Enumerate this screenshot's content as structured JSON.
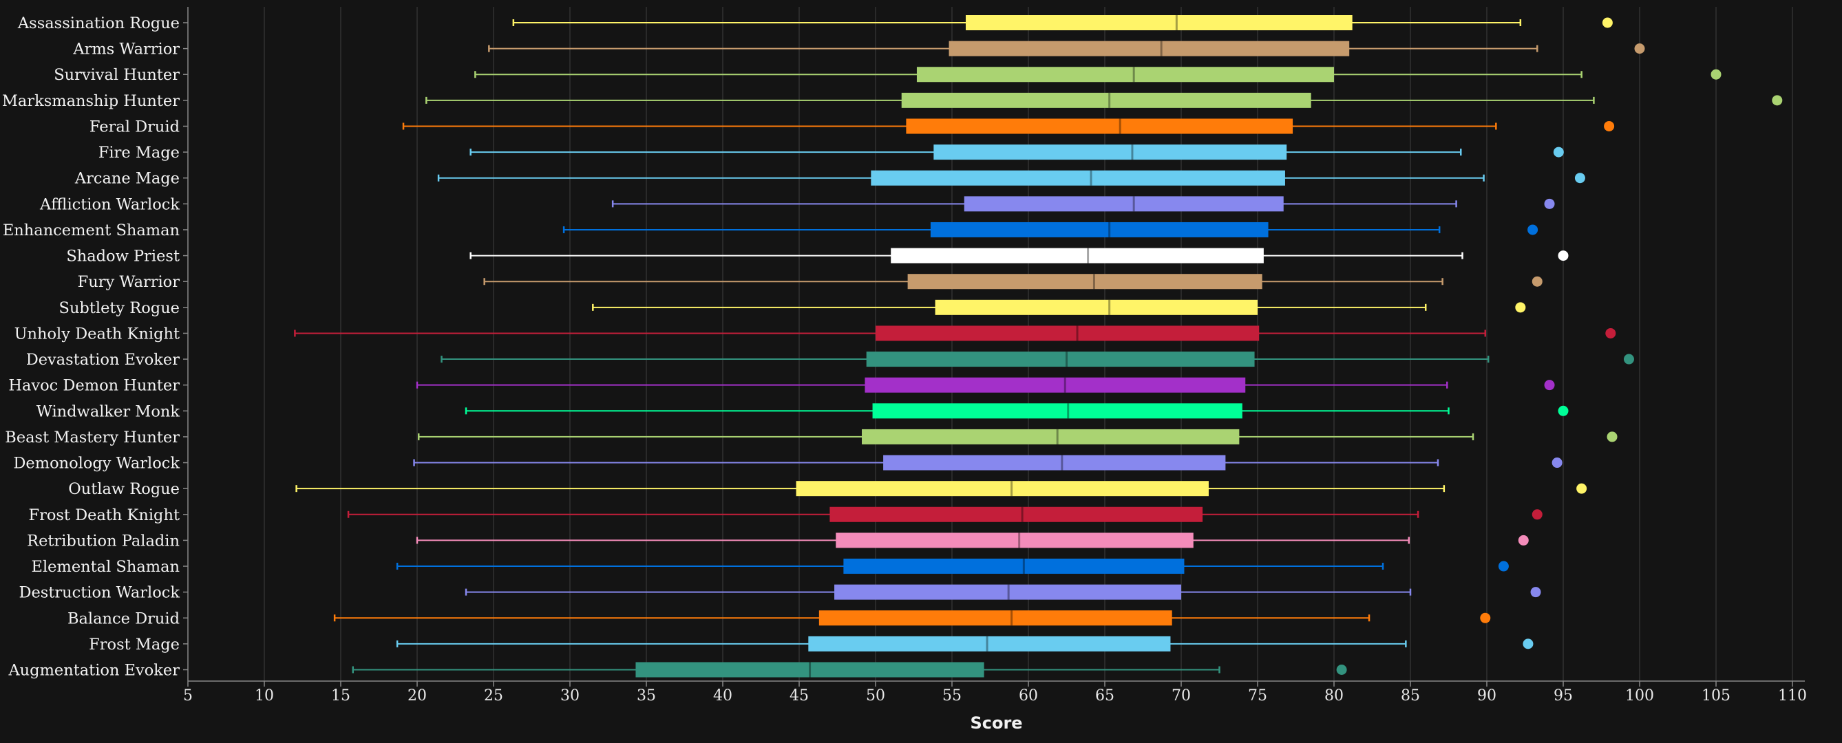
{
  "chart_data": {
    "type": "boxplot",
    "xlabel": "Score",
    "xlim": [
      5,
      112
    ],
    "xticks": [
      5,
      10,
      15,
      20,
      25,
      30,
      35,
      40,
      45,
      50,
      55,
      60,
      65,
      70,
      75,
      80,
      85,
      90,
      95,
      100,
      105,
      110
    ],
    "grid": true,
    "series": [
      {
        "name": "Assassination Rogue",
        "color": "#FFF468",
        "whisker_low": 26.3,
        "q1": 55.9,
        "median": 69.7,
        "q3": 81.2,
        "whisker_high": 92.2,
        "outlier": 97.9
      },
      {
        "name": "Arms Warrior",
        "color": "#C69B6D",
        "whisker_low": 24.7,
        "q1": 54.8,
        "median": 68.7,
        "q3": 81.0,
        "whisker_high": 93.3,
        "outlier": 100.0
      },
      {
        "name": "Survival Hunter",
        "color": "#AAD372",
        "whisker_low": 23.8,
        "q1": 52.7,
        "median": 66.9,
        "q3": 80.0,
        "whisker_high": 96.2,
        "outlier": 105.0
      },
      {
        "name": "Marksmanship Hunter",
        "color": "#AAD372",
        "whisker_low": 20.6,
        "q1": 51.7,
        "median": 65.3,
        "q3": 78.5,
        "whisker_high": 97.0,
        "outlier": 109.0
      },
      {
        "name": "Feral Druid",
        "color": "#FF7C0A",
        "whisker_low": 19.1,
        "q1": 52.0,
        "median": 66.0,
        "q3": 77.3,
        "whisker_high": 90.6,
        "outlier": 98.0
      },
      {
        "name": "Fire Mage",
        "color": "#69CCF0",
        "whisker_low": 23.5,
        "q1": 53.8,
        "median": 66.8,
        "q3": 76.9,
        "whisker_high": 88.3,
        "outlier": 94.7
      },
      {
        "name": "Arcane Mage",
        "color": "#69CCF0",
        "whisker_low": 21.4,
        "q1": 49.7,
        "median": 64.1,
        "q3": 76.8,
        "whisker_high": 89.8,
        "outlier": 96.1
      },
      {
        "name": "Affliction Warlock",
        "color": "#8788EE",
        "whisker_low": 32.8,
        "q1": 55.8,
        "median": 66.9,
        "q3": 76.7,
        "whisker_high": 88.0,
        "outlier": 94.1
      },
      {
        "name": "Enhancement Shaman",
        "color": "#0070DD",
        "whisker_low": 29.6,
        "q1": 53.6,
        "median": 65.3,
        "q3": 75.7,
        "whisker_high": 86.9,
        "outlier": 93.0
      },
      {
        "name": "Shadow Priest",
        "color": "#FFFFFF",
        "whisker_low": 23.5,
        "q1": 51.0,
        "median": 63.9,
        "q3": 75.4,
        "whisker_high": 88.4,
        "outlier": 95.0
      },
      {
        "name": "Fury Warrior",
        "color": "#C69B6D",
        "whisker_low": 24.4,
        "q1": 52.1,
        "median": 64.3,
        "q3": 75.3,
        "whisker_high": 87.1,
        "outlier": 93.3
      },
      {
        "name": "Subtlety Rogue",
        "color": "#FFF468",
        "whisker_low": 31.5,
        "q1": 53.9,
        "median": 65.3,
        "q3": 75.0,
        "whisker_high": 86.0,
        "outlier": 92.2
      },
      {
        "name": "Unholy Death Knight",
        "color": "#C41E3A",
        "whisker_low": 12.0,
        "q1": 50.0,
        "median": 63.2,
        "q3": 75.1,
        "whisker_high": 89.9,
        "outlier": 98.1
      },
      {
        "name": "Devastation Evoker",
        "color": "#33937F",
        "whisker_low": 21.6,
        "q1": 49.4,
        "median": 62.5,
        "q3": 74.8,
        "whisker_high": 90.1,
        "outlier": 99.3
      },
      {
        "name": "Havoc Demon Hunter",
        "color": "#A330C9",
        "whisker_low": 20.0,
        "q1": 49.3,
        "median": 62.4,
        "q3": 74.2,
        "whisker_high": 87.4,
        "outlier": 94.1
      },
      {
        "name": "Windwalker Monk",
        "color": "#00FF98",
        "whisker_low": 23.2,
        "q1": 49.8,
        "median": 62.6,
        "q3": 74.0,
        "whisker_high": 87.5,
        "outlier": 95.0
      },
      {
        "name": "Beast Mastery Hunter",
        "color": "#AAD372",
        "whisker_low": 20.1,
        "q1": 49.1,
        "median": 61.9,
        "q3": 73.8,
        "whisker_high": 89.1,
        "outlier": 98.2
      },
      {
        "name": "Demonology Warlock",
        "color": "#8788EE",
        "whisker_low": 19.8,
        "q1": 50.5,
        "median": 62.2,
        "q3": 72.9,
        "whisker_high": 86.8,
        "outlier": 94.6
      },
      {
        "name": "Outlaw Rogue",
        "color": "#FFF468",
        "whisker_low": 12.1,
        "q1": 44.8,
        "median": 58.9,
        "q3": 71.8,
        "whisker_high": 87.2,
        "outlier": 96.2
      },
      {
        "name": "Frost Death Knight",
        "color": "#C41E3A",
        "whisker_low": 15.5,
        "q1": 47.0,
        "median": 59.6,
        "q3": 71.4,
        "whisker_high": 85.5,
        "outlier": 93.3
      },
      {
        "name": "Retribution Paladin",
        "color": "#F48CBA",
        "whisker_low": 20.0,
        "q1": 47.4,
        "median": 59.4,
        "q3": 70.8,
        "whisker_high": 84.9,
        "outlier": 92.4
      },
      {
        "name": "Elemental Shaman",
        "color": "#0070DD",
        "whisker_low": 18.7,
        "q1": 47.9,
        "median": 59.7,
        "q3": 70.2,
        "whisker_high": 83.2,
        "outlier": 91.1
      },
      {
        "name": "Destruction Warlock",
        "color": "#8788EE",
        "whisker_low": 23.2,
        "q1": 47.3,
        "median": 58.7,
        "q3": 70.0,
        "whisker_high": 85.0,
        "outlier": 93.2
      },
      {
        "name": "Balance Druid",
        "color": "#FF7C0A",
        "whisker_low": 14.6,
        "q1": 46.3,
        "median": 58.9,
        "q3": 69.4,
        "whisker_high": 82.3,
        "outlier": 89.9
      },
      {
        "name": "Frost Mage",
        "color": "#69CCF0",
        "whisker_low": 18.7,
        "q1": 45.6,
        "median": 57.3,
        "q3": 69.3,
        "whisker_high": 84.7,
        "outlier": 92.7
      },
      {
        "name": "Augmentation Evoker",
        "color": "#33937F",
        "whisker_low": 15.8,
        "q1": 34.3,
        "median": 45.7,
        "q3": 57.1,
        "whisker_high": 72.5,
        "outlier": 80.5
      }
    ]
  }
}
